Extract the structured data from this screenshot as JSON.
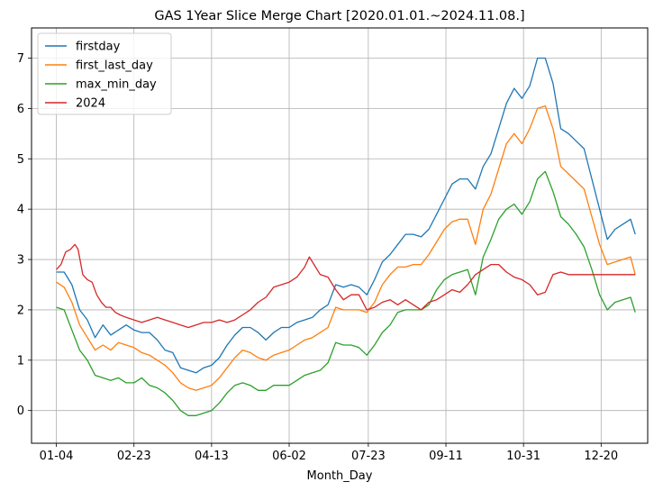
{
  "chart_data": {
    "type": "line",
    "title": "GAS 1Year Slice Merge Chart [2020.01.01.~2024.11.08.]",
    "xlabel": "Month_Day",
    "ylabel": "",
    "x_tick_labels": [
      "01-04",
      "02-23",
      "04-13",
      "06-02",
      "07-23",
      "09-11",
      "10-31",
      "12-20"
    ],
    "x_tick_day_index": [
      0,
      50,
      100,
      150,
      201,
      251,
      301,
      351
    ],
    "x_range": [
      -16,
      381
    ],
    "y_ticks": [
      0,
      1,
      2,
      3,
      4,
      5,
      6,
      7
    ],
    "ylim": [
      -0.65,
      7.6
    ],
    "grid": true,
    "legend_position": "top-left",
    "series": [
      {
        "name": "firstday",
        "color": "#1f77b4",
        "points": [
          [
            0,
            2.75
          ],
          [
            5,
            2.75
          ],
          [
            10,
            2.5
          ],
          [
            15,
            2.0
          ],
          [
            20,
            1.8
          ],
          [
            25,
            1.45
          ],
          [
            30,
            1.7
          ],
          [
            35,
            1.5
          ],
          [
            40,
            1.6
          ],
          [
            45,
            1.7
          ],
          [
            50,
            1.6
          ],
          [
            55,
            1.55
          ],
          [
            60,
            1.55
          ],
          [
            65,
            1.4
          ],
          [
            70,
            1.2
          ],
          [
            75,
            1.15
          ],
          [
            80,
            0.85
          ],
          [
            85,
            0.8
          ],
          [
            90,
            0.75
          ],
          [
            95,
            0.85
          ],
          [
            100,
            0.9
          ],
          [
            105,
            1.05
          ],
          [
            110,
            1.3
          ],
          [
            115,
            1.5
          ],
          [
            120,
            1.65
          ],
          [
            125,
            1.65
          ],
          [
            130,
            1.55
          ],
          [
            135,
            1.4
          ],
          [
            140,
            1.55
          ],
          [
            145,
            1.65
          ],
          [
            150,
            1.65
          ],
          [
            155,
            1.75
          ],
          [
            160,
            1.8
          ],
          [
            165,
            1.85
          ],
          [
            170,
            2.0
          ],
          [
            175,
            2.1
          ],
          [
            180,
            2.5
          ],
          [
            185,
            2.45
          ],
          [
            190,
            2.5
          ],
          [
            195,
            2.45
          ],
          [
            200,
            2.3
          ],
          [
            205,
            2.6
          ],
          [
            210,
            2.95
          ],
          [
            215,
            3.1
          ],
          [
            220,
            3.3
          ],
          [
            225,
            3.5
          ],
          [
            230,
            3.5
          ],
          [
            235,
            3.45
          ],
          [
            240,
            3.6
          ],
          [
            245,
            3.9
          ],
          [
            250,
            4.2
          ],
          [
            255,
            4.5
          ],
          [
            260,
            4.6
          ],
          [
            265,
            4.6
          ],
          [
            270,
            4.4
          ],
          [
            275,
            4.85
          ],
          [
            280,
            5.1
          ],
          [
            285,
            5.6
          ],
          [
            290,
            6.1
          ],
          [
            295,
            6.4
          ],
          [
            300,
            6.2
          ],
          [
            305,
            6.45
          ],
          [
            310,
            7.0
          ],
          [
            315,
            7.0
          ],
          [
            320,
            6.5
          ],
          [
            325,
            5.6
          ],
          [
            330,
            5.5
          ],
          [
            335,
            5.35
          ],
          [
            340,
            5.2
          ],
          [
            345,
            4.6
          ],
          [
            350,
            4.0
          ],
          [
            355,
            3.4
          ],
          [
            360,
            3.6
          ],
          [
            365,
            3.7
          ],
          [
            370,
            3.8
          ],
          [
            373,
            3.5
          ]
        ]
      },
      {
        "name": "first_last_day",
        "color": "#ff7f0e",
        "points": [
          [
            0,
            2.55
          ],
          [
            5,
            2.45
          ],
          [
            10,
            2.15
          ],
          [
            15,
            1.7
          ],
          [
            20,
            1.45
          ],
          [
            25,
            1.2
          ],
          [
            30,
            1.3
          ],
          [
            35,
            1.2
          ],
          [
            40,
            1.35
          ],
          [
            45,
            1.3
          ],
          [
            50,
            1.25
          ],
          [
            55,
            1.15
          ],
          [
            60,
            1.1
          ],
          [
            65,
            1.0
          ],
          [
            70,
            0.9
          ],
          [
            75,
            0.75
          ],
          [
            80,
            0.55
          ],
          [
            85,
            0.45
          ],
          [
            90,
            0.4
          ],
          [
            95,
            0.45
          ],
          [
            100,
            0.5
          ],
          [
            105,
            0.65
          ],
          [
            110,
            0.85
          ],
          [
            115,
            1.05
          ],
          [
            120,
            1.2
          ],
          [
            125,
            1.15
          ],
          [
            130,
            1.05
          ],
          [
            135,
            1.0
          ],
          [
            140,
            1.1
          ],
          [
            145,
            1.15
          ],
          [
            150,
            1.2
          ],
          [
            155,
            1.3
          ],
          [
            160,
            1.4
          ],
          [
            165,
            1.45
          ],
          [
            170,
            1.55
          ],
          [
            175,
            1.65
          ],
          [
            180,
            2.05
          ],
          [
            185,
            2.0
          ],
          [
            190,
            2.0
          ],
          [
            195,
            2.0
          ],
          [
            200,
            1.95
          ],
          [
            205,
            2.15
          ],
          [
            210,
            2.5
          ],
          [
            215,
            2.7
          ],
          [
            220,
            2.85
          ],
          [
            225,
            2.85
          ],
          [
            230,
            2.9
          ],
          [
            235,
            2.9
          ],
          [
            240,
            3.1
          ],
          [
            245,
            3.35
          ],
          [
            250,
            3.6
          ],
          [
            255,
            3.75
          ],
          [
            260,
            3.8
          ],
          [
            265,
            3.8
          ],
          [
            270,
            3.3
          ],
          [
            275,
            4.0
          ],
          [
            280,
            4.3
          ],
          [
            285,
            4.8
          ],
          [
            290,
            5.3
          ],
          [
            295,
            5.5
          ],
          [
            300,
            5.3
          ],
          [
            305,
            5.6
          ],
          [
            310,
            6.0
          ],
          [
            315,
            6.05
          ],
          [
            320,
            5.6
          ],
          [
            325,
            4.85
          ],
          [
            330,
            4.7
          ],
          [
            335,
            4.55
          ],
          [
            340,
            4.4
          ],
          [
            345,
            3.85
          ],
          [
            350,
            3.3
          ],
          [
            355,
            2.9
          ],
          [
            360,
            2.95
          ],
          [
            365,
            3.0
          ],
          [
            370,
            3.05
          ],
          [
            373,
            2.7
          ]
        ]
      },
      {
        "name": "max_min_day",
        "color": "#2ca02c",
        "points": [
          [
            0,
            2.05
          ],
          [
            5,
            2.0
          ],
          [
            10,
            1.6
          ],
          [
            15,
            1.2
          ],
          [
            20,
            1.0
          ],
          [
            25,
            0.7
          ],
          [
            30,
            0.65
          ],
          [
            35,
            0.6
          ],
          [
            40,
            0.65
          ],
          [
            45,
            0.55
          ],
          [
            50,
            0.55
          ],
          [
            55,
            0.65
          ],
          [
            60,
            0.5
          ],
          [
            65,
            0.45
          ],
          [
            70,
            0.35
          ],
          [
            75,
            0.2
          ],
          [
            80,
            0.0
          ],
          [
            85,
            -0.1
          ],
          [
            90,
            -0.1
          ],
          [
            95,
            -0.05
          ],
          [
            100,
            0.0
          ],
          [
            105,
            0.15
          ],
          [
            110,
            0.35
          ],
          [
            115,
            0.5
          ],
          [
            120,
            0.55
          ],
          [
            125,
            0.5
          ],
          [
            130,
            0.4
          ],
          [
            135,
            0.4
          ],
          [
            140,
            0.5
          ],
          [
            145,
            0.5
          ],
          [
            150,
            0.5
          ],
          [
            155,
            0.6
          ],
          [
            160,
            0.7
          ],
          [
            165,
            0.75
          ],
          [
            170,
            0.8
          ],
          [
            175,
            0.95
          ],
          [
            180,
            1.35
          ],
          [
            185,
            1.3
          ],
          [
            190,
            1.3
          ],
          [
            195,
            1.25
          ],
          [
            200,
            1.1
          ],
          [
            205,
            1.3
          ],
          [
            210,
            1.55
          ],
          [
            215,
            1.7
          ],
          [
            220,
            1.95
          ],
          [
            225,
            2.0
          ],
          [
            230,
            2.0
          ],
          [
            235,
            2.0
          ],
          [
            240,
            2.1
          ],
          [
            245,
            2.4
          ],
          [
            250,
            2.6
          ],
          [
            255,
            2.7
          ],
          [
            260,
            2.75
          ],
          [
            265,
            2.8
          ],
          [
            270,
            2.3
          ],
          [
            275,
            3.05
          ],
          [
            280,
            3.4
          ],
          [
            285,
            3.8
          ],
          [
            290,
            4.0
          ],
          [
            295,
            4.1
          ],
          [
            300,
            3.9
          ],
          [
            305,
            4.15
          ],
          [
            310,
            4.6
          ],
          [
            315,
            4.75
          ],
          [
            320,
            4.35
          ],
          [
            325,
            3.85
          ],
          [
            330,
            3.7
          ],
          [
            335,
            3.5
          ],
          [
            340,
            3.25
          ],
          [
            345,
            2.8
          ],
          [
            350,
            2.3
          ],
          [
            355,
            2.0
          ],
          [
            360,
            2.15
          ],
          [
            365,
            2.2
          ],
          [
            370,
            2.25
          ],
          [
            373,
            1.95
          ]
        ]
      },
      {
        "name": "2024",
        "color": "#d62728",
        "points": [
          [
            0,
            2.8
          ],
          [
            3,
            2.9
          ],
          [
            6,
            3.15
          ],
          [
            9,
            3.2
          ],
          [
            12,
            3.3
          ],
          [
            14,
            3.2
          ],
          [
            17,
            2.7
          ],
          [
            20,
            2.6
          ],
          [
            23,
            2.55
          ],
          [
            26,
            2.3
          ],
          [
            29,
            2.15
          ],
          [
            32,
            2.05
          ],
          [
            35,
            2.05
          ],
          [
            38,
            1.95
          ],
          [
            41,
            1.9
          ],
          [
            45,
            1.85
          ],
          [
            50,
            1.8
          ],
          [
            55,
            1.75
          ],
          [
            60,
            1.8
          ],
          [
            65,
            1.85
          ],
          [
            70,
            1.8
          ],
          [
            75,
            1.75
          ],
          [
            80,
            1.7
          ],
          [
            85,
            1.65
          ],
          [
            90,
            1.7
          ],
          [
            95,
            1.75
          ],
          [
            100,
            1.75
          ],
          [
            105,
            1.8
          ],
          [
            110,
            1.75
          ],
          [
            115,
            1.8
          ],
          [
            120,
            1.9
          ],
          [
            125,
            2.0
          ],
          [
            130,
            2.15
          ],
          [
            135,
            2.25
          ],
          [
            140,
            2.45
          ],
          [
            145,
            2.5
          ],
          [
            150,
            2.55
          ],
          [
            155,
            2.65
          ],
          [
            160,
            2.85
          ],
          [
            163,
            3.05
          ],
          [
            166,
            2.9
          ],
          [
            170,
            2.7
          ],
          [
            175,
            2.65
          ],
          [
            180,
            2.4
          ],
          [
            185,
            2.2
          ],
          [
            190,
            2.3
          ],
          [
            195,
            2.3
          ],
          [
            200,
            2.0
          ],
          [
            205,
            2.05
          ],
          [
            210,
            2.15
          ],
          [
            215,
            2.2
          ],
          [
            220,
            2.1
          ],
          [
            225,
            2.2
          ],
          [
            230,
            2.1
          ],
          [
            235,
            2.0
          ],
          [
            240,
            2.15
          ],
          [
            245,
            2.2
          ],
          [
            250,
            2.3
          ],
          [
            255,
            2.4
          ],
          [
            260,
            2.35
          ],
          [
            265,
            2.5
          ],
          [
            270,
            2.7
          ],
          [
            275,
            2.8
          ],
          [
            280,
            2.9
          ],
          [
            285,
            2.9
          ],
          [
            290,
            2.75
          ],
          [
            295,
            2.65
          ],
          [
            300,
            2.6
          ],
          [
            305,
            2.5
          ],
          [
            310,
            2.3
          ],
          [
            315,
            2.35
          ],
          [
            320,
            2.7
          ],
          [
            325,
            2.75
          ],
          [
            330,
            2.7
          ],
          [
            340,
            2.7
          ],
          [
            350,
            2.7
          ],
          [
            360,
            2.7
          ],
          [
            373,
            2.7
          ]
        ]
      }
    ]
  }
}
